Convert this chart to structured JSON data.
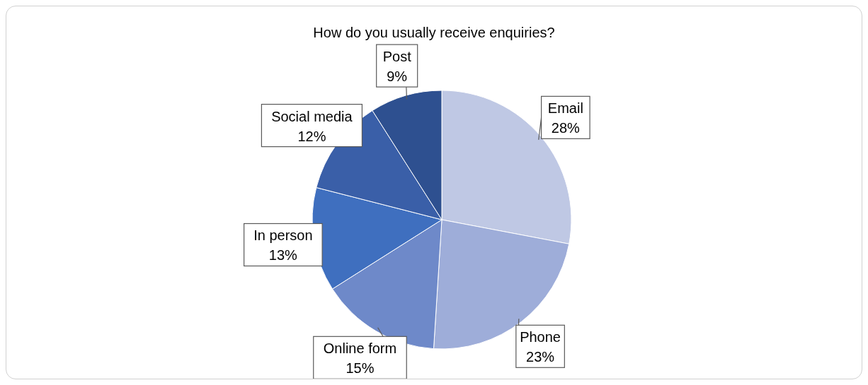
{
  "chart_data": {
    "type": "pie",
    "title": "How do you usually receive enquiries?",
    "categories": [
      "Email",
      "Phone",
      "Online form",
      "In person",
      "Social media",
      "Post"
    ],
    "values": [
      28,
      23,
      15,
      13,
      12,
      9
    ],
    "value_labels": [
      "28%",
      "23%",
      "15%",
      "13%",
      "12%",
      "9%"
    ],
    "colors": [
      "#bfc8e4",
      "#9eadd9",
      "#6e89c9",
      "#3f6fbf",
      "#3a5fa8",
      "#2e5090"
    ],
    "legend": false
  }
}
